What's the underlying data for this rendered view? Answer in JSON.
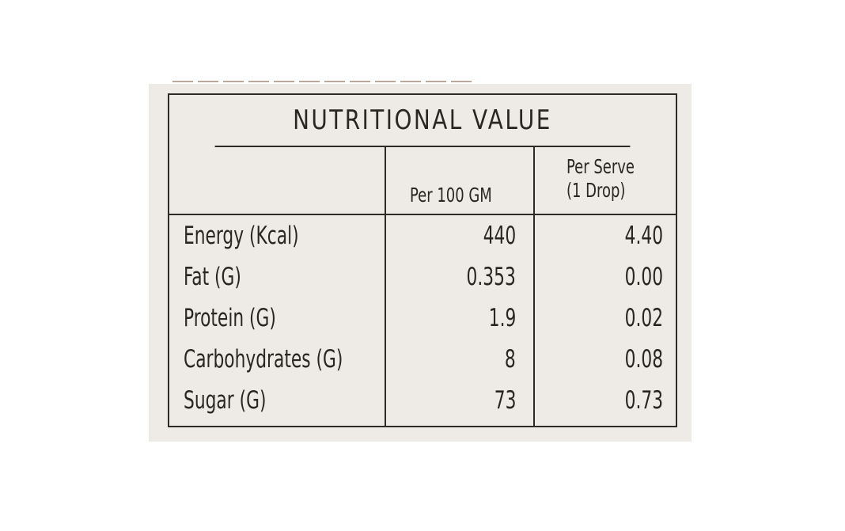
{
  "table": {
    "title": "NUTRITIONAL VALUE",
    "headers": {
      "per_100": "Per 100 GM",
      "per_serve_line1": "Per Serve",
      "per_serve_line2": "(1 Drop)"
    },
    "rows": [
      {
        "label": "Energy (Kcal)",
        "per_100": "440",
        "per_serve": "4.40"
      },
      {
        "label": "Fat (G)",
        "per_100": "0.353",
        "per_serve": "0.00"
      },
      {
        "label": "Protein (G)",
        "per_100": "1.9",
        "per_serve": "0.02"
      },
      {
        "label": "Carbohydrates (G)",
        "per_100": "8",
        "per_serve": "0.08"
      },
      {
        "label": "Sugar (G)",
        "per_100": "73",
        "per_serve": "0.73"
      }
    ]
  }
}
